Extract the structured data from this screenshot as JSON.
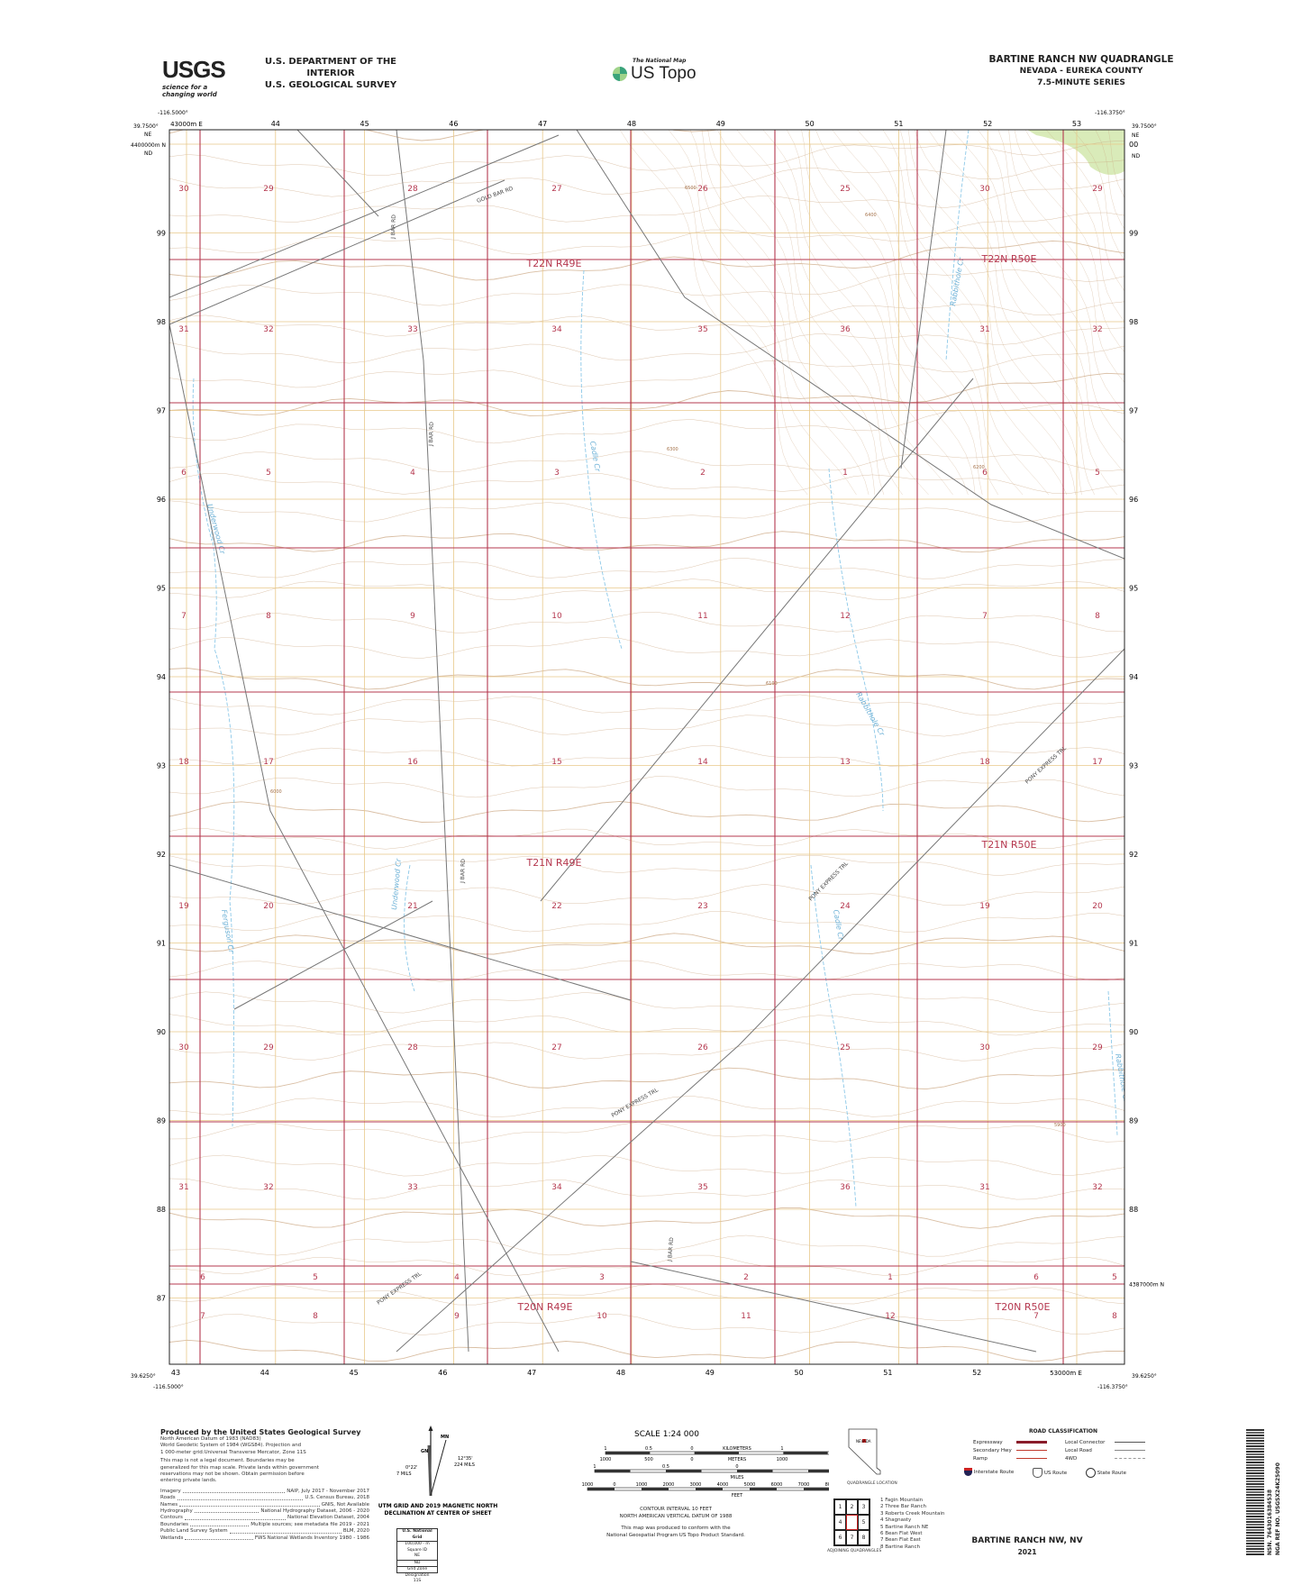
{
  "header": {
    "agency_line1": "U.S. DEPARTMENT OF THE INTERIOR",
    "agency_line2": "U.S. GEOLOGICAL SURVEY",
    "usgs_logo_text": "USGS",
    "usgs_tagline": "science for a changing world",
    "national_map_small": "The National Map",
    "ustopo_text": "US Topo",
    "quad_title": "BARTINE RANCH NW QUADRANGLE",
    "state_county": "NEVADA - EUREKA COUNTY",
    "series": "7.5-MINUTE SERIES"
  },
  "map": {
    "corners": {
      "nw_lon": "-116.5000°",
      "nw_lat": "39.7500°",
      "ne_lon": "-116.3750°",
      "ne_lat": "39.7500°",
      "sw_lon": "-116.5000°",
      "sw_lat": "39.6250°",
      "se_lon": "-116.3750°",
      "se_lat": "39.6250°"
    },
    "grid_zone_ne": "NE",
    "grid_zone_nd": "ND",
    "easting_top": [
      "43000m E",
      "44",
      "45",
      "46",
      "47",
      "48",
      "49",
      "50",
      "51",
      "52",
      "53"
    ],
    "easting_bottom": [
      "43",
      "44",
      "45",
      "46",
      "47",
      "48",
      "49",
      "50",
      "51",
      "52",
      "53000m E"
    ],
    "northing_left": [
      "4400000m N",
      "99",
      "98",
      "97",
      "96",
      "95",
      "94",
      "93",
      "92",
      "91",
      "90",
      "89",
      "88",
      "87"
    ],
    "northing_right": [
      "00",
      "99",
      "98",
      "97",
      "96",
      "95",
      "94",
      "93",
      "92",
      "91",
      "90",
      "89",
      "88",
      "4387000m N"
    ],
    "sections": [
      [
        "30",
        "29",
        "28",
        "27",
        "26",
        "25",
        "30",
        "29"
      ],
      [
        "31",
        "32",
        "33",
        "34",
        "35",
        "36",
        "31",
        "32"
      ],
      [
        "6",
        "5",
        "4",
        "3",
        "2",
        "1",
        "6",
        "5"
      ],
      [
        "7",
        "8",
        "9",
        "10",
        "11",
        "12",
        "7",
        "8"
      ],
      [
        "18",
        "17",
        "16",
        "15",
        "14",
        "13",
        "18",
        "17"
      ],
      [
        "19",
        "20",
        "21",
        "22",
        "23",
        "24",
        "19",
        "20"
      ],
      [
        "30",
        "29",
        "28",
        "27",
        "26",
        "25",
        "30",
        "29"
      ],
      [
        "31",
        "32",
        "33",
        "34",
        "35",
        "36",
        "31",
        "32"
      ],
      [
        "6",
        "5",
        "4",
        "3",
        "2",
        "1",
        "6",
        "5"
      ],
      [
        "7",
        "8",
        "9",
        "10",
        "11",
        "12",
        "7",
        "8"
      ]
    ],
    "townships": [
      "T22N R49E",
      "T22N R50E",
      "T21N R49E",
      "T21N R50E",
      "T20N R49E",
      "T20N R50E"
    ],
    "road_names": [
      "GOLD BAR RD",
      "J BAR RD",
      "J BAR RD",
      "J BAR RD",
      "PONY EXPRESS TRL",
      "PONY EXPRESS TRL",
      "PONY EXPRESS TRL",
      "PONY EXPRESS TRL",
      "J BAR RD"
    ],
    "stream_names": [
      "Underwood Cr",
      "Ferguson Cr",
      "Underwood Cr",
      "Cadle Cr",
      "Rabbithole Cr",
      "Cadle Cr",
      "Rabbithole Cr",
      "Rabbithole Cr"
    ],
    "contour_labels": [
      "6500",
      "6400",
      "6300",
      "6200",
      "6100",
      "6000",
      "5900"
    ],
    "colors": {
      "section_line": "#b5384f",
      "utm_grid": "#e8c98a",
      "contour": "#c9a27c",
      "road": "#777777",
      "stream": "#8cc8e8",
      "vegetation": "#cfe6a8"
    }
  },
  "footer": {
    "produced_by": "Produced by the United States Geological Survey",
    "datum_lines": [
      "North American Datum of 1983 (NAD83)",
      "World Geodetic System of 1984 (WGS84). Projection and",
      "1 000-meter grid:Universal Transverse Mercator, Zone 11S"
    ],
    "disclaimer": [
      "This map is not a legal document. Boundaries may be",
      "generalized for this map scale. Private lands within government",
      "reservations may not be shown. Obtain permission before",
      "entering private lands."
    ],
    "sources": [
      {
        "name": "Imagery",
        "value": "NAIP, July 2017 - November 2017"
      },
      {
        "name": "Roads",
        "value": "U.S. Census Bureau, 2018"
      },
      {
        "name": "Names",
        "value": "GNIS, Not Available"
      },
      {
        "name": "Hydrography",
        "value": "National Hydrography Dataset, 2006 - 2020"
      },
      {
        "name": "Contours",
        "value": "National Elevation Dataset, 2004"
      },
      {
        "name": "Boundaries",
        "value": "Multiple sources; see metadata file 2019 - 2021"
      },
      {
        "name": "Public Land Survey System",
        "value": "BLM, 2020"
      },
      {
        "name": "Wetlands",
        "value": "FWS National Wetlands Inventory 1980 - 1986"
      }
    ],
    "declination": {
      "mn": "MN",
      "gn": "GN",
      "left_angle": "0°22'",
      "left_mils": "7 MILS",
      "right_angle": "12°35'",
      "right_mils": "224 MILS",
      "caption1": "UTM GRID AND 2019 MAGNETIC NORTH",
      "caption2": "DECLINATION AT CENTER OF SHEET"
    },
    "usng": {
      "title": "U.S. National Grid",
      "subtitle": "100,000 - m Square ID",
      "ne": "NE",
      "nd": "ND",
      "line_value": "00",
      "gzd_label": "Grid Zone Designation",
      "gzd": "11S"
    },
    "scale": {
      "title": "SCALE 1:24 000",
      "km_ticks": [
        "1",
        "0.5",
        "0",
        "1",
        "2"
      ],
      "km_label": "KILOMETERS",
      "m_ticks": [
        "1000",
        "500",
        "0",
        "1000",
        "2000"
      ],
      "m_label": "METERS",
      "mi_ticks": [
        "1",
        "0.5",
        "0",
        "1"
      ],
      "mi_label": "MILES",
      "ft_ticks": [
        "1000",
        "0",
        "1000",
        "2000",
        "3000",
        "4000",
        "5000",
        "6000",
        "7000",
        "8000",
        "9000",
        "10000"
      ],
      "ft_label": "FEET"
    },
    "contour_interval": "CONTOUR INTERVAL 10 FEET",
    "vertical_datum": "NORTH AMERICAN VERTICAL DATUM OF 1988",
    "conform1": "This map was produced to conform with the",
    "conform2": "National Geospatial Program US Topo Product Standard.",
    "state_label": "NEVADA",
    "quad_location": "QUADRANGLE LOCATION",
    "adjoining_cells": [
      "1",
      "2",
      "3",
      "4",
      "",
      "5",
      "6",
      "7",
      "8"
    ],
    "adjoining_label": "ADJOINING QUADRANGLES",
    "adjoining": [
      "1 Fagin Mountain",
      "2 Three Bar Ranch",
      "3 Roberts Creek Mountain",
      "4 Shagnasty",
      "5 Bartine Ranch NE",
      "6 Bean Flat West",
      "7 Bean Flat East",
      "8 Bartine Ranch"
    ],
    "road_class": {
      "title": "ROAD CLASSIFICATION",
      "left": [
        "Expressway",
        "Secondary Hwy",
        "Ramp"
      ],
      "right": [
        "Local Connector",
        "Local Road",
        "4WD"
      ],
      "shields": [
        "Interstate Route",
        "US Route",
        "State Route"
      ]
    },
    "bottom_title": "BARTINE RANCH NW,  NV",
    "year": "2021",
    "barcode_text": "NSN. 7643016384538",
    "nga_ref": "NGA REF NO. USGSX24K25090"
  }
}
